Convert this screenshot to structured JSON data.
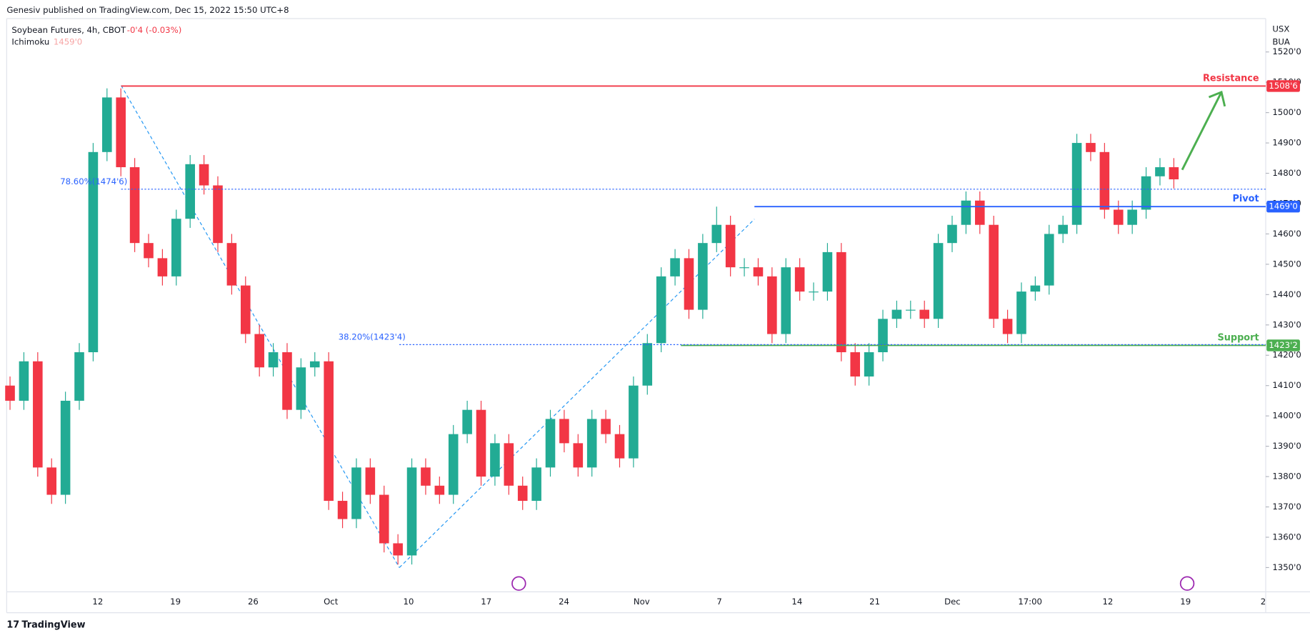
{
  "header": {
    "publisher": "Genesiv published on TradingView.com, Dec 15, 2022 15:50 UTC+8",
    "footer": "TradingView"
  },
  "chart_data": {
    "type": "candlestick",
    "title": "Soybean Futures, 4h, CBOT",
    "change": "-0'4 (-0.03%)",
    "indicator": "Ichimoku",
    "indicator_value": "1459'0",
    "currency": "USX",
    "unit": "BUA",
    "categories": [
      "12",
      "19",
      "26",
      "Oct",
      "10",
      "17",
      "24",
      "Nov",
      "7",
      "14",
      "21",
      "Dec",
      "17:00",
      "12",
      "19",
      "2"
    ],
    "candles": [
      [
        1410,
        1413,
        1402,
        1405
      ],
      [
        1405,
        1421,
        1402,
        1418
      ],
      [
        1418,
        1421,
        1380,
        1383
      ],
      [
        1383,
        1386,
        1371,
        1374
      ],
      [
        1374,
        1408,
        1371,
        1405
      ],
      [
        1405,
        1424,
        1402,
        1421
      ],
      [
        1421,
        1490,
        1418,
        1487
      ],
      [
        1487,
        1508,
        1484,
        1505
      ],
      [
        1505,
        1508,
        1479,
        1482
      ],
      [
        1482,
        1485,
        1454,
        1457
      ],
      [
        1457,
        1460,
        1449,
        1452
      ],
      [
        1452,
        1455,
        1443,
        1446
      ],
      [
        1446,
        1468,
        1443,
        1465
      ],
      [
        1465,
        1486,
        1462,
        1483
      ],
      [
        1483,
        1486,
        1473,
        1476
      ],
      [
        1476,
        1479,
        1454,
        1457
      ],
      [
        1457,
        1460,
        1440,
        1443
      ],
      [
        1443,
        1446,
        1424,
        1427
      ],
      [
        1427,
        1430,
        1413,
        1416
      ],
      [
        1416,
        1424,
        1413,
        1421
      ],
      [
        1421,
        1424,
        1399,
        1402
      ],
      [
        1402,
        1419,
        1399,
        1416
      ],
      [
        1416,
        1421,
        1413,
        1418
      ],
      [
        1418,
        1421,
        1369,
        1372
      ],
      [
        1372,
        1375,
        1363,
        1366
      ],
      [
        1366,
        1386,
        1363,
        1383
      ],
      [
        1383,
        1386,
        1371,
        1374
      ],
      [
        1374,
        1377,
        1355,
        1358
      ],
      [
        1358,
        1361,
        1351,
        1354
      ],
      [
        1354,
        1386,
        1351,
        1383
      ],
      [
        1383,
        1386,
        1374,
        1377
      ],
      [
        1377,
        1380,
        1371,
        1374
      ],
      [
        1374,
        1397,
        1371,
        1394
      ],
      [
        1394,
        1405,
        1391,
        1402
      ],
      [
        1402,
        1405,
        1377,
        1380
      ],
      [
        1380,
        1394,
        1377,
        1391
      ],
      [
        1391,
        1394,
        1374,
        1377
      ],
      [
        1377,
        1380,
        1369,
        1372
      ],
      [
        1372,
        1386,
        1369,
        1383
      ],
      [
        1383,
        1402,
        1380,
        1399
      ],
      [
        1399,
        1402,
        1388,
        1391
      ],
      [
        1391,
        1394,
        1380,
        1383
      ],
      [
        1383,
        1402,
        1380,
        1399
      ],
      [
        1399,
        1402,
        1391,
        1394
      ],
      [
        1394,
        1397,
        1383,
        1386
      ],
      [
        1386,
        1413,
        1383,
        1410
      ],
      [
        1410,
        1427,
        1407,
        1424
      ],
      [
        1424,
        1449,
        1421,
        1446
      ],
      [
        1446,
        1455,
        1443,
        1452
      ],
      [
        1452,
        1455,
        1432,
        1435
      ],
      [
        1435,
        1460,
        1432,
        1457
      ],
      [
        1457,
        1469,
        1454,
        1463
      ],
      [
        1463,
        1466,
        1446,
        1449
      ],
      [
        1449,
        1452,
        1446,
        1449
      ],
      [
        1449,
        1452,
        1443,
        1446
      ],
      [
        1446,
        1449,
        1424,
        1427
      ],
      [
        1427,
        1452,
        1424,
        1449
      ],
      [
        1449,
        1452,
        1438,
        1441
      ],
      [
        1441,
        1444,
        1438,
        1441
      ],
      [
        1441,
        1457,
        1438,
        1454
      ],
      [
        1454,
        1457,
        1418,
        1421
      ],
      [
        1421,
        1424,
        1410,
        1413
      ],
      [
        1413,
        1424,
        1410,
        1421
      ],
      [
        1421,
        1435,
        1418,
        1432
      ],
      [
        1432,
        1438,
        1429,
        1435
      ],
      [
        1435,
        1438,
        1432,
        1435
      ],
      [
        1435,
        1438,
        1429,
        1432
      ],
      [
        1432,
        1460,
        1429,
        1457
      ],
      [
        1457,
        1466,
        1454,
        1463
      ],
      [
        1463,
        1474,
        1460,
        1471
      ],
      [
        1471,
        1474,
        1460,
        1463
      ],
      [
        1463,
        1466,
        1429,
        1432
      ],
      [
        1432,
        1435,
        1424,
        1427
      ],
      [
        1427,
        1444,
        1424,
        1441
      ],
      [
        1441,
        1446,
        1438,
        1443
      ],
      [
        1443,
        1463,
        1440,
        1460
      ],
      [
        1460,
        1466,
        1457,
        1463
      ],
      [
        1463,
        1493,
        1460,
        1490
      ],
      [
        1490,
        1493,
        1484,
        1487
      ],
      [
        1487,
        1490,
        1465,
        1468
      ],
      [
        1468,
        1471,
        1460,
        1463
      ],
      [
        1463,
        1471,
        1460,
        1468
      ],
      [
        1468,
        1482,
        1465,
        1479
      ],
      [
        1479,
        1485,
        1476,
        1482
      ],
      [
        1482,
        1485,
        1475,
        1478
      ]
    ],
    "ylim": [
      1342,
      1531
    ],
    "yticks": [
      {
        "value": 1350,
        "label": "1350'0"
      },
      {
        "value": 1360,
        "label": "1360'0"
      },
      {
        "value": 1370,
        "label": "1370'0"
      },
      {
        "value": 1380,
        "label": "1380'0"
      },
      {
        "value": 1390,
        "label": "1390'0"
      },
      {
        "value": 1400,
        "label": "1400'0"
      },
      {
        "value": 1410,
        "label": "1410'0"
      },
      {
        "value": 1420,
        "label": "1420'0"
      },
      {
        "value": 1430,
        "label": "1430'0"
      },
      {
        "value": 1440,
        "label": "1440'0"
      },
      {
        "value": 1450,
        "label": "1450'0"
      },
      {
        "value": 1460,
        "label": "1460'0"
      },
      {
        "value": 1470,
        "label": "1470'0"
      },
      {
        "value": 1480,
        "label": "1480'0"
      },
      {
        "value": 1490,
        "label": "1490'0"
      },
      {
        "value": 1500,
        "label": "1500'0"
      },
      {
        "value": 1510,
        "label": "1510'0"
      },
      {
        "value": 1520,
        "label": "1520'0"
      }
    ],
    "levels": [
      {
        "name": "Resistance",
        "value": 1508.75,
        "label": "1508'6",
        "color": "#f23645"
      },
      {
        "name": "Pivot",
        "value": 1469,
        "label": "1469'0",
        "color": "#2962ff"
      },
      {
        "name": "Support",
        "value": 1423.25,
        "label": "1423'2",
        "color": "#4caf50"
      }
    ],
    "fib": [
      {
        "label": "78.60%(1474'6)",
        "value": 1474.75
      },
      {
        "label": "38.20%(1423'4)",
        "value": 1423.5
      }
    ],
    "colors": {
      "up": "#22ab94",
      "down": "#f23645"
    }
  }
}
